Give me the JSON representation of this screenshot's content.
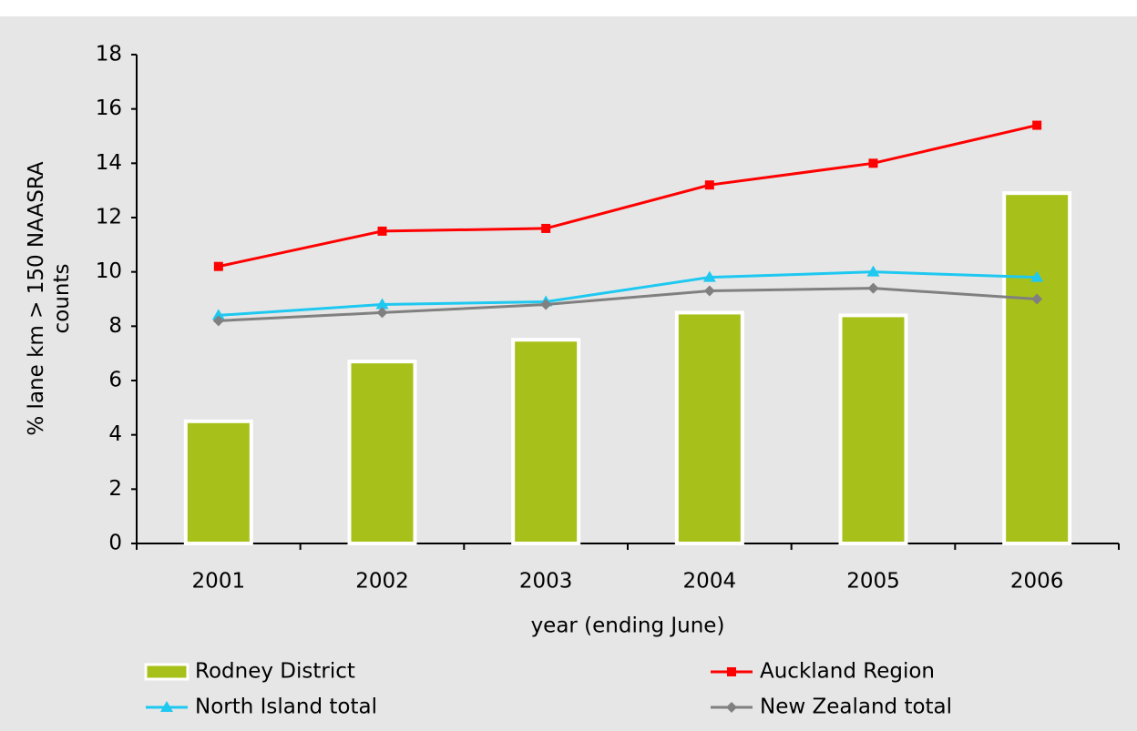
{
  "chart_data": {
    "type": "bar",
    "y_label": "% lane km > 150 NAASRA counts",
    "x_label": "year (ending June)",
    "categories": [
      "2001",
      "2002",
      "2003",
      "2004",
      "2005",
      "2006"
    ],
    "ylim": [
      0,
      18
    ],
    "yticks": [
      0,
      2,
      4,
      6,
      8,
      10,
      12,
      14,
      16,
      18
    ],
    "series": [
      {
        "name": "Rodney District",
        "type": "bar",
        "color": "#a8c11a",
        "values": [
          4.5,
          6.7,
          7.5,
          8.5,
          8.4,
          12.9
        ]
      },
      {
        "name": "Auckland Region",
        "type": "line",
        "marker": "square",
        "color": "#ff0000",
        "values": [
          10.2,
          11.5,
          11.6,
          13.2,
          14.0,
          15.4
        ]
      },
      {
        "name": "North Island total",
        "type": "line",
        "marker": "triangle",
        "color": "#1ec8f0",
        "values": [
          8.4,
          8.8,
          8.9,
          9.8,
          10.0,
          9.8
        ]
      },
      {
        "name": "New Zealand total",
        "type": "line",
        "marker": "diamond",
        "color": "#808080",
        "values": [
          8.2,
          8.5,
          8.8,
          9.3,
          9.4,
          9.0
        ]
      }
    ]
  }
}
